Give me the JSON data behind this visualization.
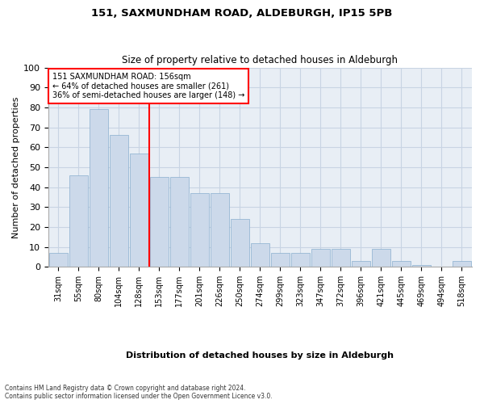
{
  "title": "151, SAXMUNDHAM ROAD, ALDEBURGH, IP15 5PB",
  "subtitle": "Size of property relative to detached houses in Aldeburgh",
  "xlabel": "Distribution of detached houses by size in Aldeburgh",
  "ylabel": "Number of detached properties",
  "categories": [
    "31sqm",
    "55sqm",
    "80sqm",
    "104sqm",
    "128sqm",
    "153sqm",
    "177sqm",
    "201sqm",
    "226sqm",
    "250sqm",
    "274sqm",
    "299sqm",
    "323sqm",
    "347sqm",
    "372sqm",
    "396sqm",
    "421sqm",
    "445sqm",
    "469sqm",
    "494sqm",
    "518sqm"
  ],
  "values": [
    7,
    46,
    79,
    66,
    57,
    45,
    45,
    37,
    37,
    24,
    12,
    7,
    7,
    9,
    9,
    3,
    9,
    3,
    1,
    0,
    3
  ],
  "bar_color": "#ccd9ea",
  "bar_edge_color": "#89aece",
  "vline_x": 5.0,
  "vline_color": "red",
  "annotation_text": "151 SAXMUNDHAM ROAD: 156sqm\n← 64% of detached houses are smaller (261)\n36% of semi-detached houses are larger (148) →",
  "annotation_box_color": "white",
  "annotation_box_edge_color": "red",
  "ylim": [
    0,
    100
  ],
  "yticks": [
    0,
    10,
    20,
    30,
    40,
    50,
    60,
    70,
    80,
    90,
    100
  ],
  "grid_color": "#c8d4e3",
  "background_color": "#e8eef5",
  "footer": "Contains HM Land Registry data © Crown copyright and database right 2024.\nContains public sector information licensed under the Open Government Licence v3.0."
}
